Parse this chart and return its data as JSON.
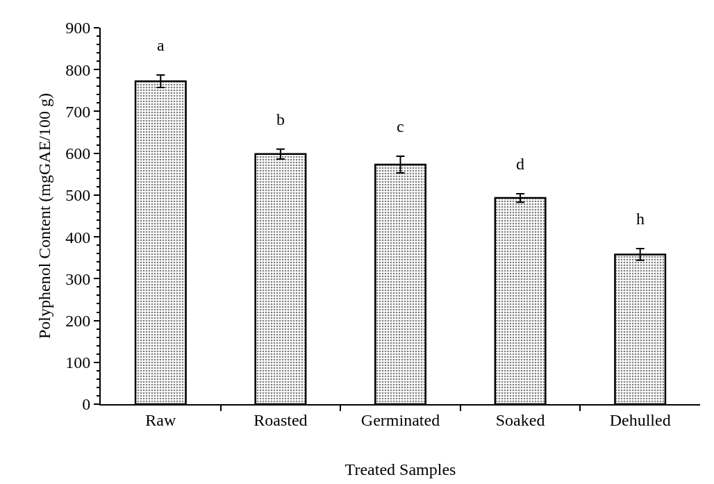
{
  "chart_data": {
    "type": "bar",
    "xlabel": "Treated Samples",
    "ylabel": "Polyphenol Content (mgGAE/100 g)",
    "categories": [
      "Raw",
      "Roasted",
      "Germinated",
      "Soaked",
      "Dehulled"
    ],
    "values": [
      772,
      598,
      573,
      493,
      358
    ],
    "errors": [
      15,
      12,
      20,
      10,
      14
    ],
    "color": "#000000",
    "ylim": [
      0,
      900
    ],
    "yticks": [
      0,
      {
        "value": 20,
        "label": null
      },
      {
        "value": 40,
        "label": null
      },
      {
        "value": 60,
        "label": null
      },
      {
        "value": 80,
        "label": null
      },
      100,
      {
        "value": 120,
        "label": null
      },
      {
        "value": 140,
        "label": null
      },
      {
        "value": 160,
        "label": null
      },
      {
        "value": 180,
        "label": null
      },
      200,
      {
        "value": 220,
        "label": null
      },
      {
        "value": 240,
        "label": null
      },
      {
        "value": 260,
        "label": null
      },
      {
        "value": 280,
        "label": null
      },
      300,
      {
        "value": 320,
        "label": null
      },
      {
        "value": 340,
        "label": null
      },
      {
        "value": 360,
        "label": null
      },
      {
        "value": 380,
        "label": null
      },
      400,
      {
        "value": 420,
        "label": null
      },
      {
        "value": 440,
        "label": null
      },
      {
        "value": 460,
        "label": null
      },
      {
        "value": 480,
        "label": null
      },
      500,
      {
        "value": 520,
        "label": null
      },
      {
        "value": 540,
        "label": null
      },
      {
        "value": 560,
        "label": null
      },
      {
        "value": 580,
        "label": null
      },
      600,
      {
        "value": 620,
        "label": null
      },
      {
        "value": 640,
        "label": null
      },
      {
        "value": 660,
        "label": null
      },
      {
        "value": 680,
        "label": null
      },
      700,
      {
        "value": 720,
        "label": null
      },
      {
        "value": 740,
        "label": null
      },
      {
        "value": 760,
        "label": null
      },
      {
        "value": 780,
        "label": null
      },
      800,
      {
        "value": 820,
        "label": null
      },
      {
        "value": 840,
        "label": null
      },
      {
        "value": 860,
        "label": null
      },
      {
        "value": 880,
        "label": null
      },
      900
    ],
    "annotations": [
      "a",
      "b",
      "c",
      "d",
      "h"
    ],
    "legend": false
  }
}
